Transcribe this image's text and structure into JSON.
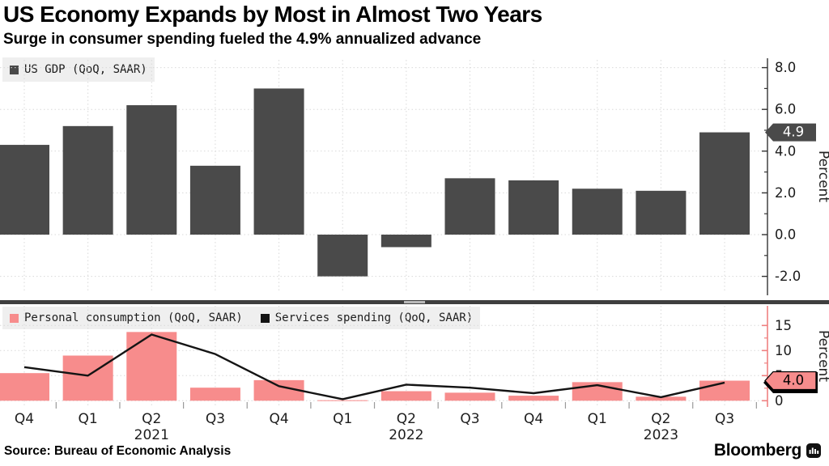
{
  "header": {
    "title": "US Economy Expands by Most in Almost Two Years",
    "subtitle": "Surge in consumer spending fueled the 4.9% annualized advance"
  },
  "source": "Source: Bureau of Economic Analysis",
  "branding": {
    "logo_text": "Bloomberg"
  },
  "colors": {
    "bar_dark": "#4a4a4a",
    "pink": "#f78c8c",
    "line_black": "#141414",
    "axis_dark": "#333333",
    "axis_salmon": "#ef8080",
    "grid": "#d9d9d9",
    "tick_label": "#1a1a1a",
    "legend_bg": "#efefef",
    "divider": "#3f3f3f",
    "marker_top_bg": "#4a4a4a",
    "marker_top_text": "#ffffff",
    "marker_bottom_bg": "#f78c8c",
    "marker_bottom_text": "#000000"
  },
  "xaxis": {
    "quarter_labels": [
      "Q4",
      "Q1",
      "Q2",
      "Q3",
      "Q4",
      "Q1",
      "Q2",
      "Q3",
      "Q4",
      "Q1",
      "Q2",
      "Q3"
    ],
    "year_labels": [
      {
        "text": "2021",
        "index": 2
      },
      {
        "text": "2022",
        "index": 6
      },
      {
        "text": "2023",
        "index": 10
      }
    ]
  },
  "chart_data": [
    {
      "type": "bar",
      "title": "US GDP (QoQ, SAAR)",
      "ylabel": "Percent",
      "legend_position": "top-left",
      "grid": true,
      "categories": [
        "Q4 2020",
        "Q1 2021",
        "Q2 2021",
        "Q3 2021",
        "Q4 2021",
        "Q1 2022",
        "Q2 2022",
        "Q3 2022",
        "Q4 2022",
        "Q1 2023",
        "Q2 2023",
        "Q3 2023"
      ],
      "values": [
        4.3,
        5.2,
        6.2,
        3.3,
        7.0,
        -2.0,
        -0.6,
        2.7,
        2.6,
        2.2,
        2.1,
        4.9
      ],
      "ylim": [
        -2.9,
        8.6
      ],
      "yticks": [
        {
          "value": 8,
          "label": "8.0"
        },
        {
          "value": 6,
          "label": "6.0"
        },
        {
          "value": 4,
          "label": "4.0"
        },
        {
          "value": 2,
          "label": "2.0"
        },
        {
          "value": 0,
          "label": "0.0"
        },
        {
          "value": -2,
          "label": "-2.0"
        }
      ],
      "yticks_minor": [
        7,
        5,
        3,
        1,
        -1
      ],
      "last_value_marker": {
        "value": 4.9,
        "label": "4.9"
      }
    },
    {
      "type": "bar+line",
      "ylabel": "Percent",
      "legend_position": "top-left",
      "grid": true,
      "categories": [
        "Q4 2020",
        "Q1 2021",
        "Q2 2021",
        "Q3 2021",
        "Q4 2021",
        "Q1 2022",
        "Q2 2022",
        "Q3 2022",
        "Q4 2022",
        "Q1 2023",
        "Q2 2023",
        "Q3 2023"
      ],
      "series": [
        {
          "name": "Personal consumption (QoQ, SAAR)",
          "type": "bar",
          "color": "#f78c8c",
          "values": [
            5.5,
            9.0,
            13.7,
            2.6,
            4.1,
            0.1,
            1.9,
            1.6,
            1.0,
            3.7,
            0.8,
            4.0
          ]
        },
        {
          "name": "Services spending (QoQ, SAAR)",
          "type": "line",
          "color": "#141414",
          "values": [
            6.7,
            5.0,
            13.2,
            9.3,
            2.9,
            0.3,
            3.2,
            2.6,
            1.5,
            3.1,
            0.7,
            3.6
          ]
        }
      ],
      "ylim": [
        0,
        19
      ],
      "yticks": [
        {
          "value": 15,
          "label": "15"
        },
        {
          "value": 10,
          "label": "10"
        },
        {
          "value": 5,
          "label": "5"
        },
        {
          "value": 0,
          "label": "0"
        }
      ],
      "yticks_minor": [
        12.5,
        7.5,
        2.5
      ],
      "last_value_marker": {
        "value": 4.0,
        "label": "4.0"
      },
      "line_last_value": 3.6
    }
  ]
}
